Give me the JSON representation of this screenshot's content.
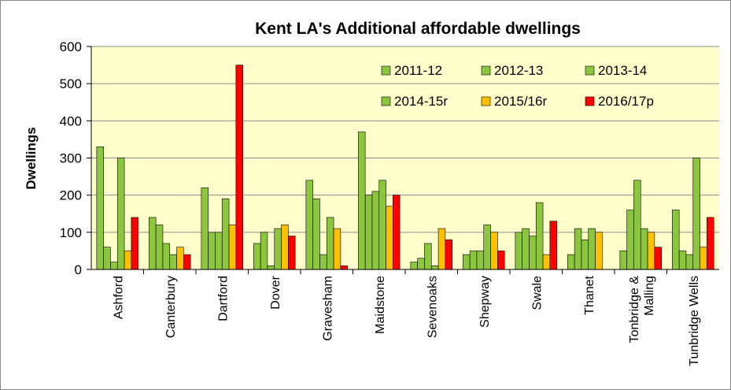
{
  "chart_data": {
    "type": "bar",
    "title": "Kent LA's Additional affordable dwellings",
    "xlabel": "",
    "ylabel": "Dwellings",
    "ylim": [
      0,
      600
    ],
    "yticks": [
      0,
      100,
      200,
      300,
      400,
      500,
      600
    ],
    "grid": true,
    "legend_position": "top-right",
    "plot_background": "#FFFFCC",
    "categories": [
      "Ashford",
      "Canterbury",
      "Dartford",
      "Dover",
      "Gravesham",
      "Maidstone",
      "Sevenoaks",
      "Shepway",
      "Swale",
      "Thanet",
      "Tonbridge & Malling",
      "Tunbridge Wells"
    ],
    "series": [
      {
        "name": "2011-12",
        "color": "#8CC63F",
        "values": [
          330,
          140,
          220,
          70,
          240,
          370,
          20,
          40,
          100,
          40,
          50,
          160
        ]
      },
      {
        "name": "2012-13",
        "color": "#8CC63F",
        "values": [
          60,
          120,
          100,
          100,
          190,
          200,
          30,
          50,
          110,
          110,
          160,
          50
        ]
      },
      {
        "name": "2013-14",
        "color": "#8CC63F",
        "values": [
          20,
          70,
          100,
          10,
          40,
          210,
          70,
          50,
          90,
          80,
          240,
          40
        ]
      },
      {
        "name": "2014-15r",
        "color": "#8CC63F",
        "values": [
          300,
          40,
          190,
          110,
          140,
          240,
          10,
          120,
          180,
          110,
          110,
          300
        ]
      },
      {
        "name": "2015/16r",
        "color": "#FFC000",
        "values": [
          50,
          60,
          120,
          120,
          110,
          170,
          110,
          100,
          40,
          100,
          100,
          60
        ]
      },
      {
        "name": "2016/17p",
        "color": "#FF0000",
        "values": [
          140,
          40,
          550,
          90,
          10,
          200,
          80,
          50,
          130,
          0,
          60,
          140
        ]
      }
    ]
  }
}
